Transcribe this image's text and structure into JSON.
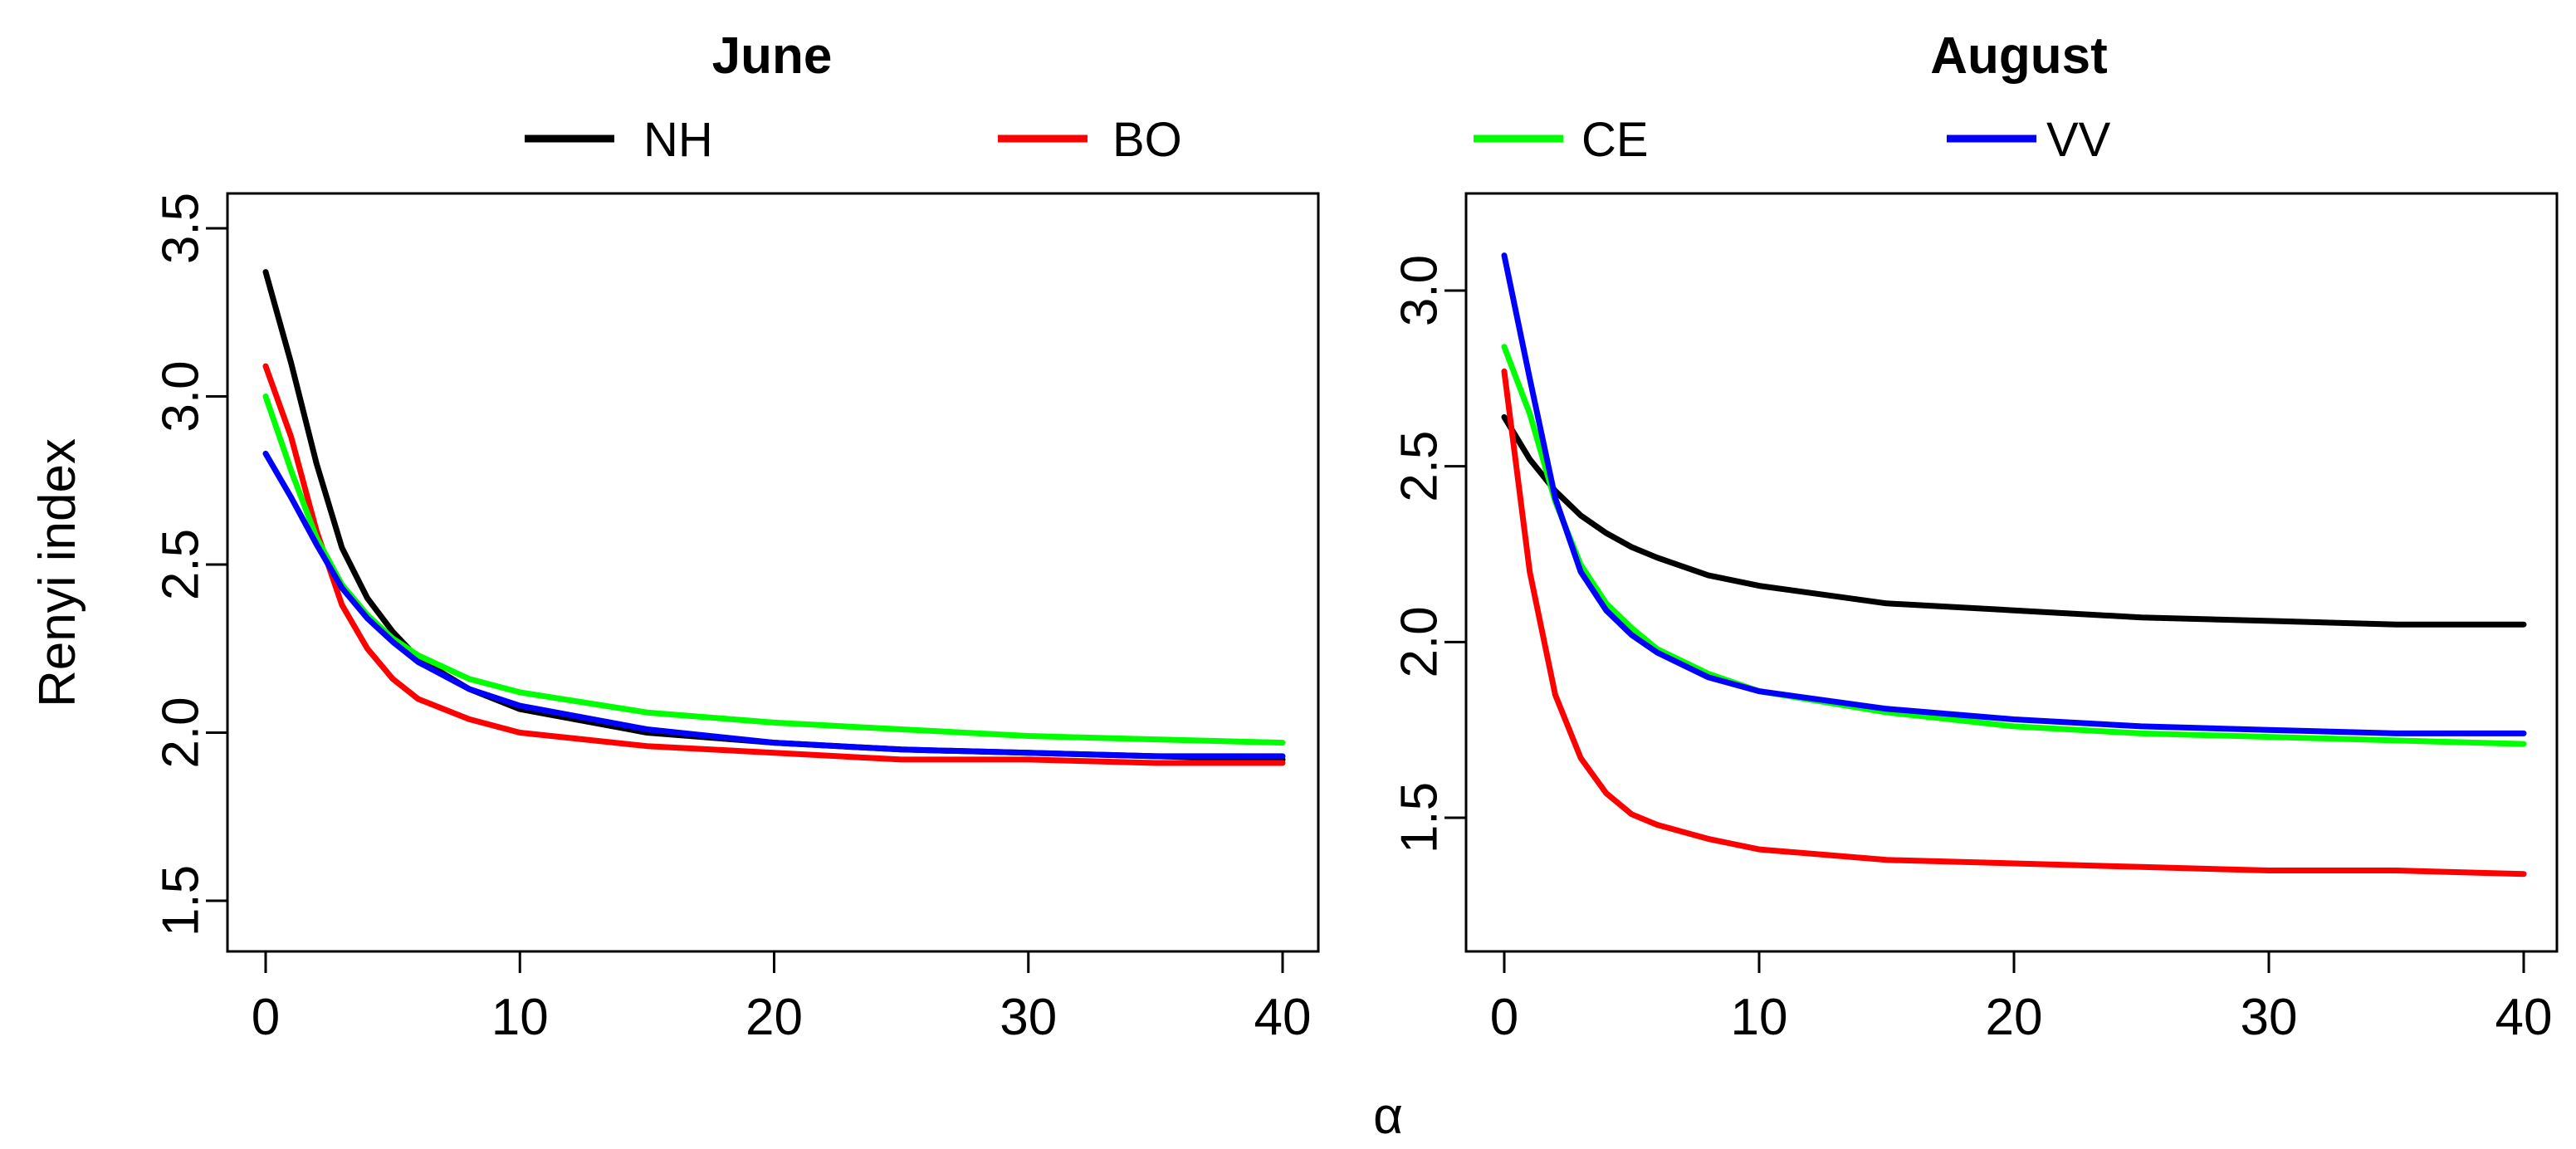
{
  "legend": [
    {
      "name": "NH",
      "color": "#000000"
    },
    {
      "name": "BO",
      "color": "#ff0000"
    },
    {
      "name": "CE",
      "color": "#00ff00"
    },
    {
      "name": "VV",
      "color": "#0000ff"
    }
  ],
  "shared_xlabel": "α",
  "chart_data": [
    {
      "type": "line",
      "title": "June",
      "xlabel": "",
      "ylabel": "Renyi index",
      "xlim": [
        0,
        40
      ],
      "ylim": [
        1.5,
        3.5
      ],
      "xticks": [
        0,
        10,
        20,
        30,
        40
      ],
      "yticks": [
        1.5,
        2.0,
        2.5,
        3.0,
        3.5
      ],
      "x": [
        0,
        1,
        2,
        3,
        4,
        5,
        6,
        8,
        10,
        15,
        20,
        25,
        30,
        35,
        40
      ],
      "series": [
        {
          "name": "NH",
          "color": "#000000",
          "values": [
            3.37,
            3.1,
            2.8,
            2.55,
            2.4,
            2.3,
            2.22,
            2.13,
            2.07,
            2.0,
            1.97,
            1.95,
            1.94,
            1.93,
            1.92
          ]
        },
        {
          "name": "BO",
          "color": "#ff0000",
          "values": [
            3.09,
            2.88,
            2.6,
            2.38,
            2.25,
            2.16,
            2.1,
            2.04,
            2.0,
            1.96,
            1.94,
            1.92,
            1.92,
            1.91,
            1.91
          ]
        },
        {
          "name": "CE",
          "color": "#00ff00",
          "values": [
            3.0,
            2.78,
            2.58,
            2.44,
            2.35,
            2.28,
            2.23,
            2.16,
            2.12,
            2.06,
            2.03,
            2.01,
            1.99,
            1.98,
            1.97
          ]
        },
        {
          "name": "VV",
          "color": "#0000ff",
          "values": [
            2.83,
            2.7,
            2.56,
            2.43,
            2.34,
            2.27,
            2.21,
            2.13,
            2.08,
            2.01,
            1.97,
            1.95,
            1.94,
            1.93,
            1.93
          ]
        }
      ]
    },
    {
      "type": "line",
      "title": "August",
      "xlabel": "",
      "ylabel": "",
      "xlim": [
        0,
        40
      ],
      "ylim": [
        1.5,
        3.0
      ],
      "xticks": [
        0,
        10,
        20,
        30,
        40
      ],
      "yticks": [
        1.5,
        2.0,
        2.5,
        3.0
      ],
      "x": [
        0,
        1,
        2,
        3,
        4,
        5,
        6,
        8,
        10,
        15,
        20,
        25,
        30,
        35,
        40
      ],
      "series": [
        {
          "name": "NH",
          "color": "#000000",
          "values": [
            2.64,
            2.52,
            2.43,
            2.36,
            2.31,
            2.27,
            2.24,
            2.19,
            2.16,
            2.11,
            2.09,
            2.07,
            2.06,
            2.05,
            2.05
          ]
        },
        {
          "name": "BO",
          "color": "#ff0000",
          "values": [
            2.77,
            2.2,
            1.85,
            1.67,
            1.57,
            1.51,
            1.48,
            1.44,
            1.41,
            1.38,
            1.37,
            1.36,
            1.35,
            1.35,
            1.34
          ]
        },
        {
          "name": "CE",
          "color": "#00ff00",
          "values": [
            2.84,
            2.65,
            2.4,
            2.22,
            2.11,
            2.04,
            1.98,
            1.91,
            1.86,
            1.8,
            1.76,
            1.74,
            1.73,
            1.72,
            1.71
          ]
        },
        {
          "name": "VV",
          "color": "#0000ff",
          "values": [
            3.1,
            2.75,
            2.41,
            2.2,
            2.09,
            2.02,
            1.97,
            1.9,
            1.86,
            1.81,
            1.78,
            1.76,
            1.75,
            1.74,
            1.74
          ]
        }
      ]
    }
  ]
}
